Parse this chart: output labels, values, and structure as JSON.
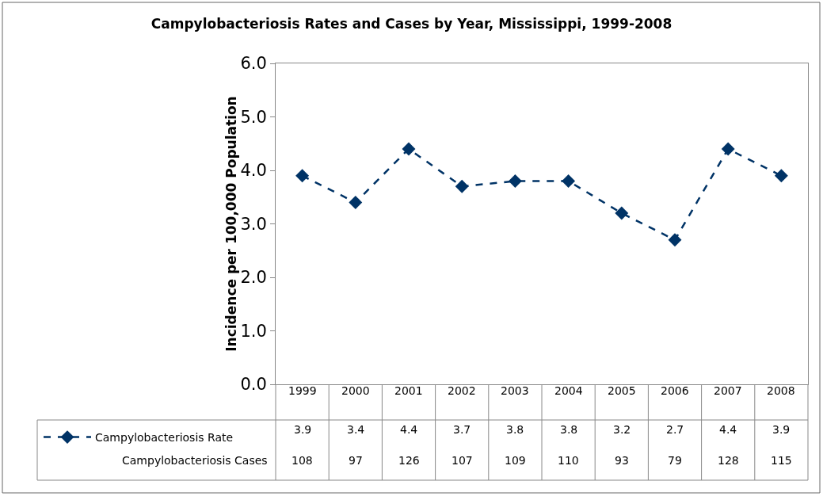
{
  "chart_data": {
    "type": "line",
    "title": "Campylobacteriosis Rates and Cases by Year, Mississippi, 1999-2008",
    "ylabel": "Incidence per 100,000 Population",
    "categories": [
      "1999",
      "2000",
      "2001",
      "2002",
      "2003",
      "2004",
      "2005",
      "2006",
      "2007",
      "2008"
    ],
    "series": [
      {
        "name": "Campylobacteriosis Rate",
        "color": "#003366",
        "values": [
          3.9,
          3.4,
          4.4,
          3.7,
          3.8,
          3.8,
          3.2,
          2.7,
          4.4,
          3.9
        ]
      }
    ],
    "marker": "diamond",
    "line_style": "dashed",
    "annotations": [
      "Campylobacteriosis Cases",
      "108",
      "97",
      "126",
      "107",
      "109",
      "110",
      "93",
      "79",
      "128",
      "115"
    ],
    "ylim": [
      0,
      6
    ],
    "yticks": [
      {
        "value": 0,
        "label": "0.0"
      },
      {
        "value": 1,
        "label": "1.0"
      },
      {
        "value": 2,
        "label": "2.0"
      },
      {
        "value": 3,
        "label": "3.0"
      },
      {
        "value": 4,
        "label": "4.0"
      },
      {
        "value": 5,
        "label": "5.0"
      },
      {
        "value": 6,
        "label": "6.0"
      }
    ],
    "data_labels": true,
    "legend": "bottom"
  }
}
